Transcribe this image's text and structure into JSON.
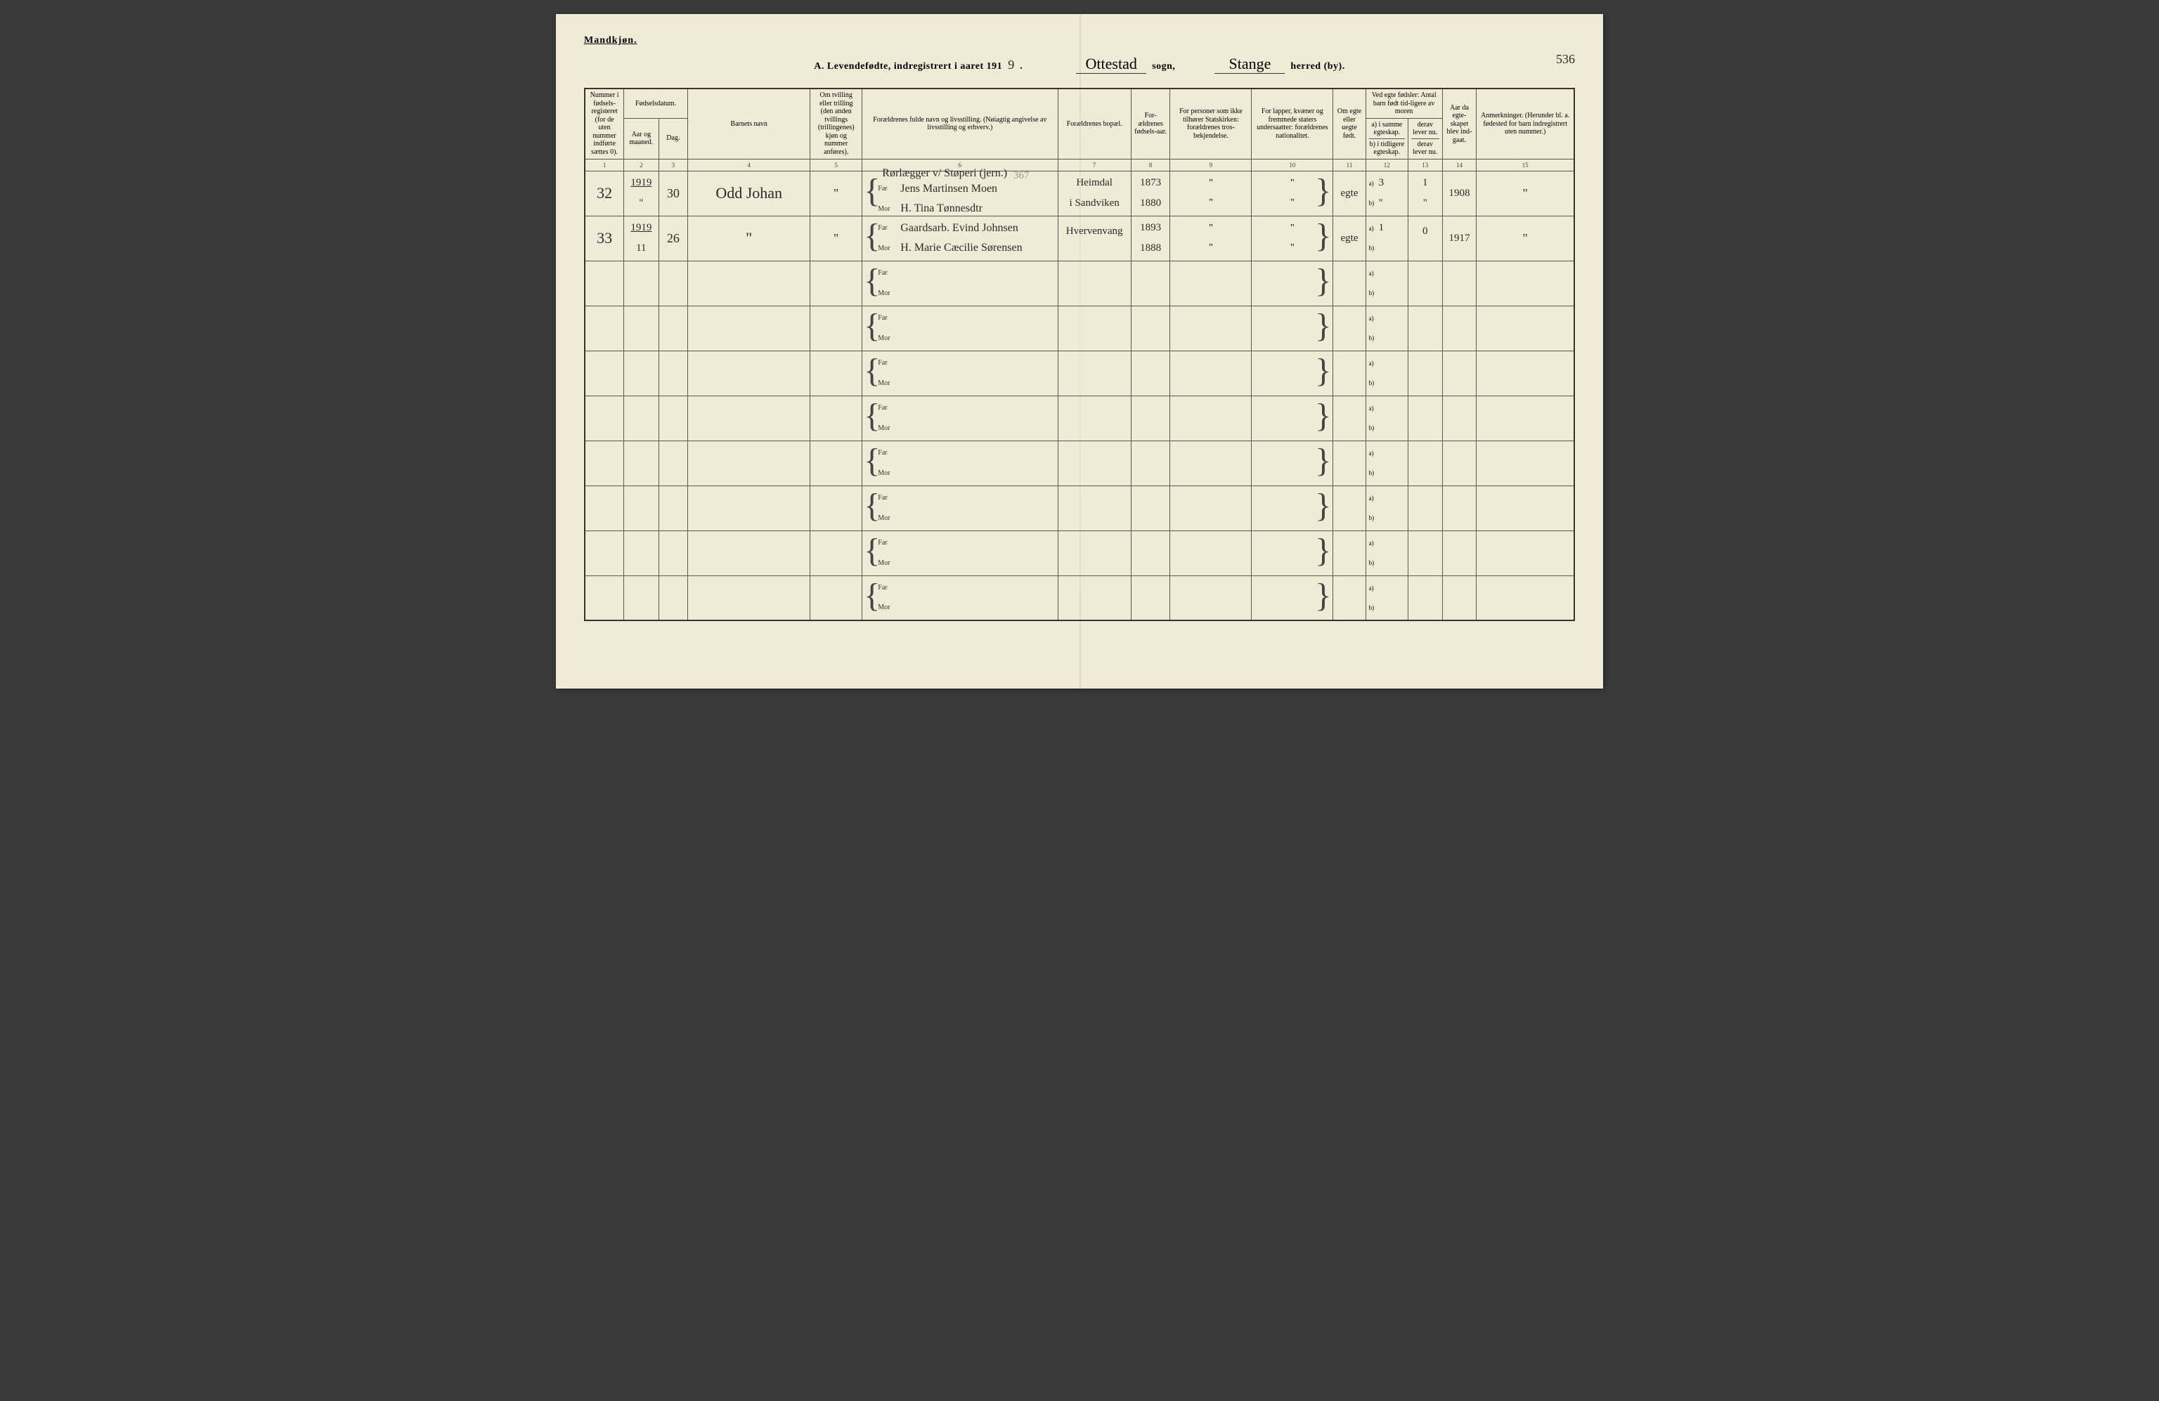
{
  "header": {
    "gender": "Mandkjøn.",
    "title_prefix": "A. Levendefødte, indregistrert i aaret 191",
    "year_suffix": "9",
    "sogn_label": "sogn,",
    "sogn_value": "Ottestad",
    "herred_label": "herred (by).",
    "herred_value": "Stange",
    "page_number": "536"
  },
  "columns": {
    "c1": "Nummer i fødsels-registeret (for de uten nummer indførte sættes 0).",
    "c2_top": "Fødselsdatum.",
    "c2a": "Aar og maaned.",
    "c2b": "Dag.",
    "c4": "Barnets navn",
    "c5": "Om tvilling eller trilling (den anden tvillings (trillingenes) kjøn og nummer anføres).",
    "c6": "Forældrenes fulde navn og livsstilling. (Nøiagtig angivelse av livsstilling og erhverv.)",
    "c7": "Forældrenes bopæl.",
    "c8": "For-ældrenes fødsels-aar.",
    "c9": "For personer som ikke tilhører Statskirken: forældrenes tros-bekjendelse.",
    "c10": "For lapper, kvæner og fremmede staters undersaatter: forældrenes nationalitet.",
    "c11": "Om egte eller uegte født.",
    "c12_top": "Ved egte fødsler: Antal barn født tid-ligere av moren",
    "c12a": "a) i samme egteskap.",
    "c12b": "b) i tidligere egteskap.",
    "c13a": "derav lever nu.",
    "c13b": "derav lever nu.",
    "c14": "Aar da egte-skapet blev ind-gaat.",
    "c15": "Anmerkninger. (Herunder bl. a. fødested for barn indregistrert uten nummer.)"
  },
  "colnums": {
    "n1": "1",
    "n2": "2",
    "n3": "3",
    "n4": "4",
    "n5": "5",
    "n6": "6",
    "n7": "7",
    "n8": "8",
    "n9": "9",
    "n10": "10",
    "n11": "11",
    "n12": "12",
    "n13": "13",
    "n14": "14",
    "n15": "15"
  },
  "labels": {
    "far": "Far",
    "mor": "Mor",
    "a": "a)",
    "b": "b)"
  },
  "rows": [
    {
      "num": "32",
      "year": "1919",
      "month": "\"",
      "day": "30",
      "name": "Odd Johan",
      "twin": "\"",
      "pencil_note": "367",
      "occ_top": "Rørlægger v/ Støperi (jern.)",
      "far": "Jens Martinsen Moen",
      "mor": "H. Tina Tønnesdtr",
      "bopel_far": "Heimdal",
      "bopel_mor": "i Sandviken",
      "far_aar": "1873",
      "mor_aar": "1880",
      "c9_far": "\"",
      "c9_mor": "\"",
      "c10_far": "\"",
      "c10_mor": "\"",
      "egte": "egte",
      "a_val": "3",
      "a_lever": "1",
      "b_val": "\"",
      "b_lever": "\"",
      "aar_egt": "1908",
      "anm": "\""
    },
    {
      "num": "33",
      "year": "1919",
      "month": "11",
      "day": "26",
      "name": "\"",
      "twin": "\"",
      "occ_top": "",
      "far": "Gaardsarb. Evind Johnsen",
      "mor": "H. Marie Cæcilie Sørensen",
      "bopel_far": "Hvervenvang",
      "bopel_mor": "",
      "far_aar": "1893",
      "mor_aar": "1888",
      "c9_far": "\"",
      "c9_mor": "\"",
      "c10_far": "\"",
      "c10_mor": "\"",
      "egte": "egte",
      "a_val": "1",
      "a_lever": "0",
      "b_val": "",
      "b_lever": "",
      "aar_egt": "1917",
      "anm": "\""
    }
  ],
  "empty_rows": 8,
  "style": {
    "paper": "#f0ead6",
    "ink": "#2a2a2a",
    "rule": "#333333",
    "pencil": "#9a9a8a",
    "script_font": "Brush Script MT",
    "print_font": "Georgia"
  }
}
